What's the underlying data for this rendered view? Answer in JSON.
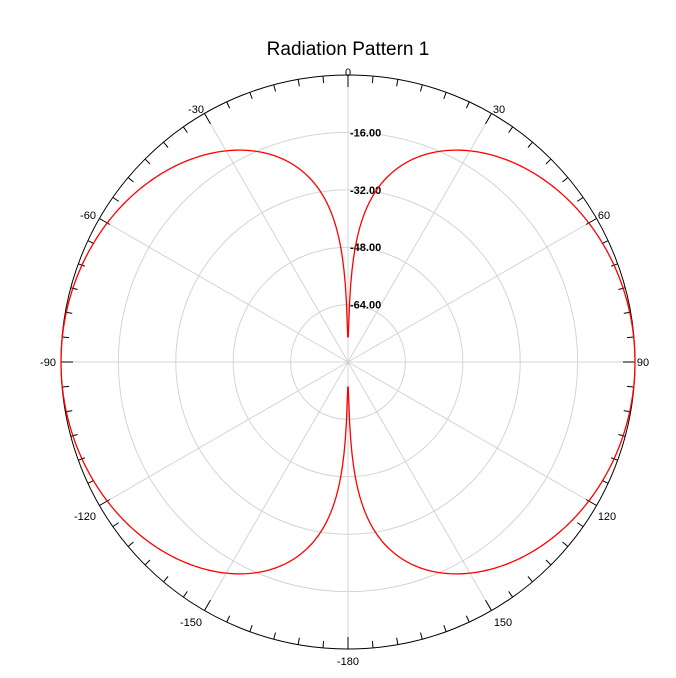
{
  "chart_data": {
    "type": "polar-line",
    "title": "Radiation Pattern 1",
    "angle_labels": [
      "0",
      "30",
      "60",
      "90",
      "120",
      "150",
      "-180",
      "-150",
      "-120",
      "-90",
      "-60",
      "-30"
    ],
    "ring_labels": [
      "-16.00",
      "-32.00",
      "-48.00",
      "-64.00"
    ],
    "radial_range": [
      -80,
      0
    ],
    "angle_spokes_every_deg": 30,
    "series": [
      {
        "color": "#ff0000",
        "pattern": "sin^2(theta) null along 0/180 axis",
        "min_db": -73,
        "max_db": 0
      }
    ],
    "colors": {
      "grid": "#d4d4d4",
      "outer_ring": "#000000",
      "ticks": "#000000"
    }
  }
}
